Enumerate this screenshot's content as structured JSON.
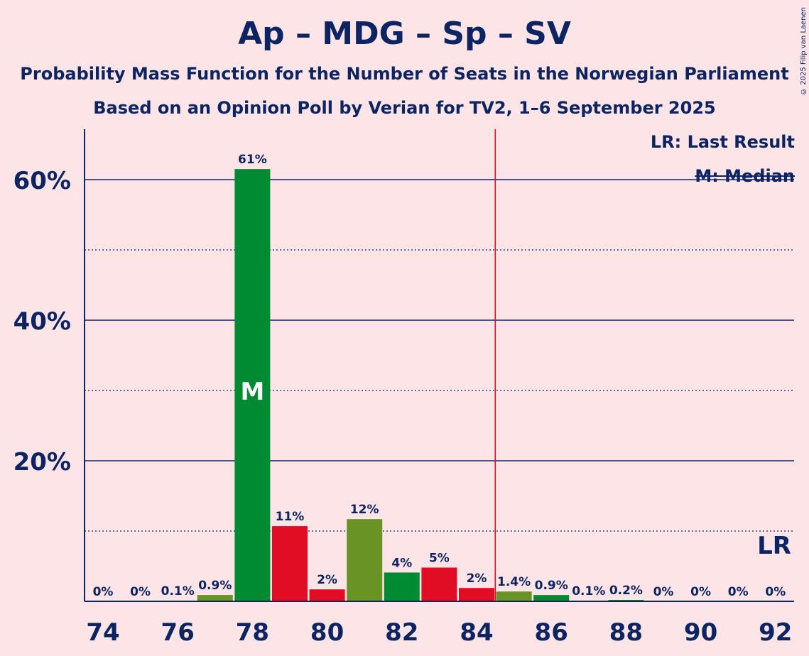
{
  "title": "Ap – MDG – Sp – SV",
  "subtitle1": "Probability Mass Function for the Number of Seats in the Norwegian Parliament",
  "subtitle2": "Based on an Opinion Poll by Verian for TV2, 1–6 September 2025",
  "copyright": "© 2025 Filip van Laenen",
  "legend": {
    "lr": "LR: Last Result",
    "m": "M: Median"
  },
  "colors": {
    "background": "#fde4e6",
    "axis": "#0c2461",
    "green": "#008a32",
    "red": "#e00d25",
    "olive": "#6a9325",
    "last_result_line": "#e00d25"
  },
  "chart_data": {
    "type": "bar",
    "title": "Ap – MDG – Sp – SV",
    "xlabel": "",
    "ylabel": "",
    "ylim": [
      0,
      67
    ],
    "yticks_major": [
      20,
      40,
      60
    ],
    "yticks_major_labels": [
      "20%",
      "40%",
      "60%"
    ],
    "yticks_minor": [
      10,
      30,
      50
    ],
    "xtick_labels": [
      "74",
      "76",
      "78",
      "80",
      "82",
      "84",
      "86",
      "88",
      "90",
      "92"
    ],
    "categories": [
      74,
      75,
      76,
      77,
      78,
      79,
      80,
      81,
      82,
      83,
      84,
      85,
      86,
      87,
      88,
      89,
      90,
      91,
      92
    ],
    "values": [
      0,
      0,
      0.1,
      0.9,
      61.5,
      10.7,
      1.7,
      11.7,
      4.1,
      4.8,
      1.9,
      1.4,
      0.9,
      0.1,
      0.2,
      0,
      0,
      0,
      0
    ],
    "labels": [
      "0%",
      "0%",
      "0.1%",
      "0.9%",
      "61%",
      "11%",
      "2%",
      "12%",
      "4%",
      "5%",
      "2%",
      "1.4%",
      "0.9%",
      "0.1%",
      "0.2%",
      "0%",
      "0%",
      "0%",
      "0%"
    ],
    "bar_colors": [
      "#008a32",
      "#e00d25",
      "#6a9325",
      "#6a9325",
      "#008a32",
      "#e00d25",
      "#e00d25",
      "#6a9325",
      "#008a32",
      "#e00d25",
      "#e00d25",
      "#6a9325",
      "#008a32",
      "#008a32",
      "#008a32",
      "#008a32",
      "#008a32",
      "#008a32",
      "#008a32"
    ],
    "median_seat": 78,
    "median_marker": "M",
    "last_result_seat": 84.5,
    "last_result_marker": "LR"
  }
}
